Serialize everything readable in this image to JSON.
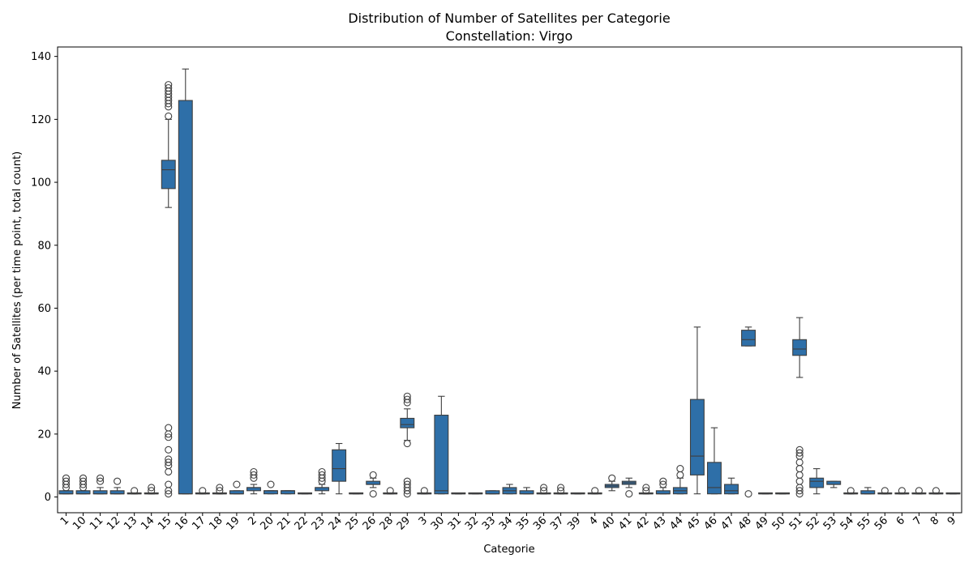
{
  "chart_data": {
    "type": "box",
    "title": "Distribution of Number of Satellites per Categorie",
    "subtitle": "Constellation: Virgo",
    "xlabel": "Categorie",
    "ylabel": "Number of Satellites (per time point, total count)",
    "ylim": [
      -5,
      143
    ],
    "yticks": [
      0,
      20,
      40,
      60,
      80,
      100,
      120,
      140
    ],
    "grid": false,
    "color": "#2e6fa8",
    "categories": [
      "1",
      "10",
      "11",
      "12",
      "13",
      "14",
      "15",
      "16",
      "17",
      "18",
      "19",
      "2",
      "20",
      "21",
      "22",
      "23",
      "24",
      "25",
      "26",
      "28",
      "29",
      "3",
      "30",
      "31",
      "32",
      "33",
      "34",
      "35",
      "36",
      "37",
      "39",
      "4",
      "40",
      "41",
      "42",
      "43",
      "44",
      "45",
      "46",
      "47",
      "48",
      "49",
      "50",
      "51",
      "52",
      "53",
      "54",
      "55",
      "56",
      "6",
      "7",
      "8",
      "9"
    ],
    "boxes": [
      {
        "category": "1",
        "q1": 1,
        "median": 1,
        "q3": 2,
        "whisker_low": 1,
        "whisker_high": 2,
        "outliers": [
          3,
          4,
          5,
          6
        ]
      },
      {
        "category": "10",
        "q1": 1,
        "median": 1,
        "q3": 2,
        "whisker_low": 1,
        "whisker_high": 2,
        "outliers": [
          3,
          4,
          5,
          6
        ]
      },
      {
        "category": "11",
        "q1": 1,
        "median": 1,
        "q3": 2,
        "whisker_low": 1,
        "whisker_high": 3,
        "outliers": [
          5,
          6
        ]
      },
      {
        "category": "12",
        "q1": 1,
        "median": 1,
        "q3": 2,
        "whisker_low": 1,
        "whisker_high": 3,
        "outliers": [
          5
        ]
      },
      {
        "category": "13",
        "q1": 1,
        "median": 1,
        "q3": 1,
        "whisker_low": 1,
        "whisker_high": 1,
        "outliers": [
          2
        ]
      },
      {
        "category": "14",
        "q1": 1,
        "median": 1,
        "q3": 1,
        "whisker_low": 1,
        "whisker_high": 1,
        "outliers": [
          2,
          3
        ]
      },
      {
        "category": "15",
        "q1": 98,
        "median": 104,
        "q3": 107,
        "whisker_low": 92,
        "whisker_high": 120,
        "outliers": [
          121,
          124,
          125,
          126,
          127,
          128,
          129,
          130,
          131,
          1,
          2,
          4,
          8,
          10,
          11,
          12,
          15,
          19,
          20,
          22
        ]
      },
      {
        "category": "16",
        "q1": 1,
        "median": 1,
        "q3": 126,
        "whisker_low": 1,
        "whisker_high": 136,
        "outliers": []
      },
      {
        "category": "17",
        "q1": 1,
        "median": 1,
        "q3": 1,
        "whisker_low": 1,
        "whisker_high": 1,
        "outliers": [
          2
        ]
      },
      {
        "category": "18",
        "q1": 1,
        "median": 1,
        "q3": 1,
        "whisker_low": 1,
        "whisker_high": 1,
        "outliers": [
          2,
          3
        ]
      },
      {
        "category": "19",
        "q1": 1,
        "median": 1,
        "q3": 2,
        "whisker_low": 1,
        "whisker_high": 2,
        "outliers": [
          4
        ]
      },
      {
        "category": "2",
        "q1": 2,
        "median": 3,
        "q3": 3,
        "whisker_low": 1,
        "whisker_high": 4,
        "outliers": [
          6,
          7,
          8
        ]
      },
      {
        "category": "20",
        "q1": 1,
        "median": 2,
        "q3": 2,
        "whisker_low": 1,
        "whisker_high": 2,
        "outliers": [
          4
        ]
      },
      {
        "category": "21",
        "q1": 1,
        "median": 2,
        "q3": 2,
        "whisker_low": 1,
        "whisker_high": 2,
        "outliers": []
      },
      {
        "category": "22",
        "q1": 1,
        "median": 1,
        "q3": 1,
        "whisker_low": 1,
        "whisker_high": 1,
        "outliers": []
      },
      {
        "category": "23",
        "q1": 2,
        "median": 3,
        "q3": 3,
        "whisker_low": 1,
        "whisker_high": 4,
        "outliers": [
          5,
          6,
          7,
          8
        ]
      },
      {
        "category": "24",
        "q1": 5,
        "median": 9,
        "q3": 15,
        "whisker_low": 1,
        "whisker_high": 17,
        "outliers": []
      },
      {
        "category": "25",
        "q1": 1,
        "median": 1,
        "q3": 1,
        "whisker_low": 1,
        "whisker_high": 1,
        "outliers": []
      },
      {
        "category": "26",
        "q1": 4,
        "median": 4,
        "q3": 5,
        "whisker_low": 3,
        "whisker_high": 6,
        "outliers": [
          7,
          1
        ]
      },
      {
        "category": "28",
        "q1": 1,
        "median": 1,
        "q3": 1,
        "whisker_low": 1,
        "whisker_high": 1,
        "outliers": [
          2
        ]
      },
      {
        "category": "29",
        "q1": 22,
        "median": 23,
        "q3": 25,
        "whisker_low": 18,
        "whisker_high": 28,
        "outliers": [
          30,
          31,
          32,
          17,
          1,
          2,
          3,
          4,
          5
        ]
      },
      {
        "category": "3",
        "q1": 1,
        "median": 1,
        "q3": 1,
        "whisker_low": 1,
        "whisker_high": 1,
        "outliers": [
          2
        ]
      },
      {
        "category": "30",
        "q1": 1,
        "median": 2,
        "q3": 26,
        "whisker_low": 1,
        "whisker_high": 32,
        "outliers": []
      },
      {
        "category": "31",
        "q1": 1,
        "median": 1,
        "q3": 1,
        "whisker_low": 1,
        "whisker_high": 1,
        "outliers": []
      },
      {
        "category": "32",
        "q1": 1,
        "median": 1,
        "q3": 1,
        "whisker_low": 1,
        "whisker_high": 1,
        "outliers": []
      },
      {
        "category": "33",
        "q1": 1,
        "median": 1,
        "q3": 2,
        "whisker_low": 1,
        "whisker_high": 2,
        "outliers": []
      },
      {
        "category": "34",
        "q1": 1,
        "median": 2,
        "q3": 3,
        "whisker_low": 1,
        "whisker_high": 4,
        "outliers": []
      },
      {
        "category": "35",
        "q1": 1,
        "median": 1,
        "q3": 2,
        "whisker_low": 1,
        "whisker_high": 3,
        "outliers": []
      },
      {
        "category": "36",
        "q1": 1,
        "median": 1,
        "q3": 1,
        "whisker_low": 1,
        "whisker_high": 1,
        "outliers": [
          2,
          3
        ]
      },
      {
        "category": "37",
        "q1": 1,
        "median": 1,
        "q3": 1,
        "whisker_low": 1,
        "whisker_high": 1,
        "outliers": [
          2,
          3
        ]
      },
      {
        "category": "39",
        "q1": 1,
        "median": 1,
        "q3": 1,
        "whisker_low": 1,
        "whisker_high": 1,
        "outliers": []
      },
      {
        "category": "4",
        "q1": 1,
        "median": 1,
        "q3": 1,
        "whisker_low": 1,
        "whisker_high": 1,
        "outliers": [
          2
        ]
      },
      {
        "category": "40",
        "q1": 3,
        "median": 3.5,
        "q3": 4,
        "whisker_low": 2,
        "whisker_high": 5,
        "outliers": [
          6
        ]
      },
      {
        "category": "41",
        "q1": 4,
        "median": 4.5,
        "q3": 5,
        "whisker_low": 3,
        "whisker_high": 6,
        "outliers": [
          1
        ]
      },
      {
        "category": "42",
        "q1": 1,
        "median": 1,
        "q3": 1,
        "whisker_low": 1,
        "whisker_high": 1,
        "outliers": [
          2,
          3
        ]
      },
      {
        "category": "43",
        "q1": 1,
        "median": 1,
        "q3": 2,
        "whisker_low": 1,
        "whisker_high": 3,
        "outliers": [
          4,
          5
        ]
      },
      {
        "category": "44",
        "q1": 1,
        "median": 2,
        "q3": 3,
        "whisker_low": 1,
        "whisker_high": 6,
        "outliers": [
          7,
          9
        ]
      },
      {
        "category": "45",
        "q1": 7,
        "median": 13,
        "q3": 31,
        "whisker_low": 1,
        "whisker_high": 54,
        "outliers": []
      },
      {
        "category": "46",
        "q1": 1,
        "median": 3,
        "q3": 11,
        "whisker_low": 1,
        "whisker_high": 22,
        "outliers": []
      },
      {
        "category": "47",
        "q1": 1,
        "median": 2,
        "q3": 4,
        "whisker_low": 1,
        "whisker_high": 6,
        "outliers": []
      },
      {
        "category": "48",
        "q1": 48,
        "median": 50,
        "q3": 53,
        "whisker_low": 48,
        "whisker_high": 54,
        "outliers": [
          1
        ]
      },
      {
        "category": "49",
        "q1": 1,
        "median": 1,
        "q3": 1,
        "whisker_low": 1,
        "whisker_high": 1,
        "outliers": []
      },
      {
        "category": "50",
        "q1": 1,
        "median": 1,
        "q3": 1,
        "whisker_low": 1,
        "whisker_high": 1,
        "outliers": []
      },
      {
        "category": "51",
        "q1": 45,
        "median": 47,
        "q3": 50,
        "whisker_low": 38,
        "whisker_high": 57,
        "outliers": [
          1,
          2,
          3,
          5,
          7,
          9,
          11,
          13,
          14,
          15
        ]
      },
      {
        "category": "52",
        "q1": 3,
        "median": 5,
        "q3": 6,
        "whisker_low": 1,
        "whisker_high": 9,
        "outliers": []
      },
      {
        "category": "53",
        "q1": 4,
        "median": 4,
        "q3": 5,
        "whisker_low": 3,
        "whisker_high": 5,
        "outliers": []
      },
      {
        "category": "54",
        "q1": 1,
        "median": 1,
        "q3": 1,
        "whisker_low": 1,
        "whisker_high": 1,
        "outliers": [
          2
        ]
      },
      {
        "category": "55",
        "q1": 1,
        "median": 1,
        "q3": 2,
        "whisker_low": 1,
        "whisker_high": 3,
        "outliers": []
      },
      {
        "category": "56",
        "q1": 1,
        "median": 1,
        "q3": 1,
        "whisker_low": 1,
        "whisker_high": 1,
        "outliers": [
          2
        ]
      },
      {
        "category": "6",
        "q1": 1,
        "median": 1,
        "q3": 1,
        "whisker_low": 1,
        "whisker_high": 1,
        "outliers": [
          2
        ]
      },
      {
        "category": "7",
        "q1": 1,
        "median": 1,
        "q3": 1,
        "whisker_low": 1,
        "whisker_high": 1,
        "outliers": [
          2
        ]
      },
      {
        "category": "8",
        "q1": 1,
        "median": 1,
        "q3": 1,
        "whisker_low": 1,
        "whisker_high": 1,
        "outliers": [
          2
        ]
      },
      {
        "category": "9",
        "q1": 1,
        "median": 1,
        "q3": 1,
        "whisker_low": 1,
        "whisker_high": 1,
        "outliers": []
      }
    ]
  }
}
